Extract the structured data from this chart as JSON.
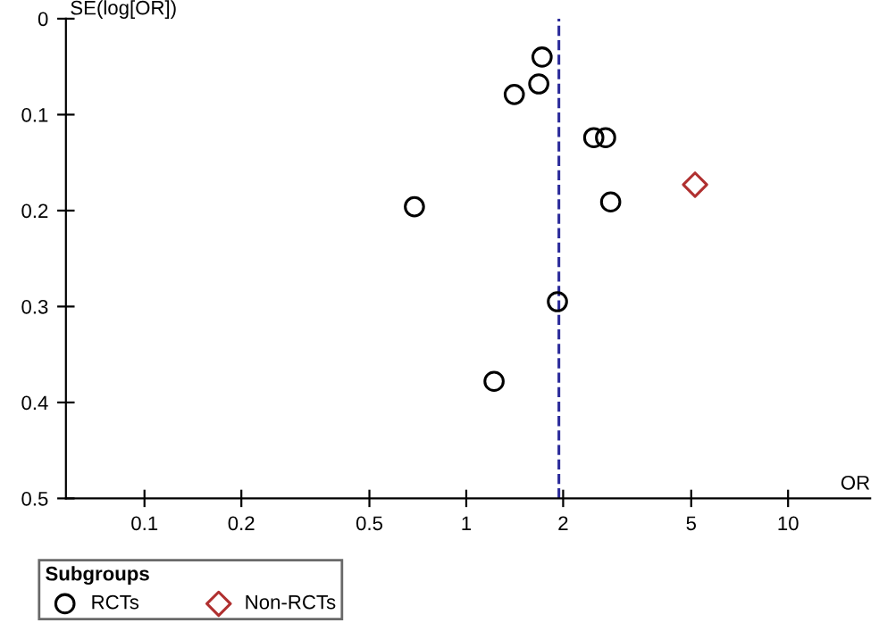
{
  "chart_data": {
    "type": "scatter",
    "xlabel": "OR",
    "ylabel": "SE(log[OR])",
    "legend_title": "Subgroups",
    "legend": "bottom",
    "log": "x",
    "grid": false,
    "xlim": [
      0.057,
      18
    ],
    "xticks": [
      0.1,
      0.2,
      0.5,
      1,
      2,
      5,
      10
    ],
    "ylim": [
      0.5,
      0
    ],
    "yticks": [
      0,
      0.1,
      0.2,
      0.3,
      0.4,
      0.5
    ],
    "series": [
      {
        "name": "RCTs",
        "color": "#000000",
        "marker": "circle",
        "x": [
          1.72,
          1.68,
          1.41,
          2.49,
          2.71,
          2.81,
          0.69,
          1.92,
          1.22
        ],
        "values": [
          0.04,
          0.068,
          0.079,
          0.124,
          0.124,
          0.191,
          0.196,
          0.295,
          0.378
        ]
      },
      {
        "name": "Non-RCTs",
        "color": "#b03030",
        "marker": "diamond",
        "x": [
          5.14
        ],
        "values": [
          0.173
        ]
      }
    ],
    "ref_lines": [
      {
        "axis": "x",
        "value": 1.94,
        "color": "#2a2a9a",
        "line_style": "dashed"
      }
    ]
  }
}
